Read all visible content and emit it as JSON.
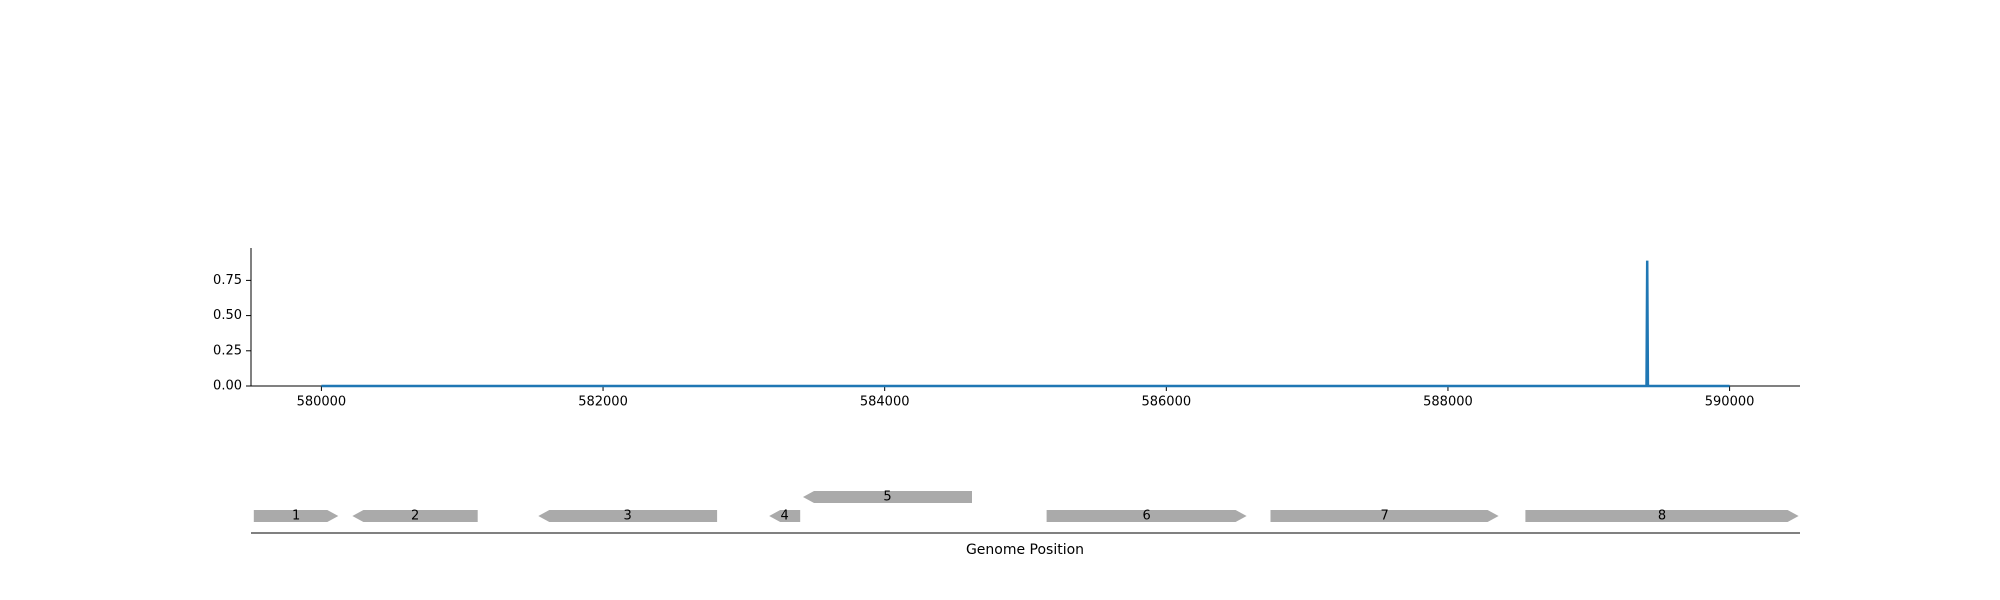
{
  "colors": {
    "series": "#1f77b4",
    "gene": "#aaaaaa",
    "axis": "#000000"
  },
  "chart_data": [
    {
      "type": "line",
      "title": "",
      "xlabel": "",
      "ylabel": "",
      "xlim": [
        579500,
        590500
      ],
      "ylim": [
        0,
        0.98
      ],
      "x_ticks": [
        580000,
        582000,
        584000,
        586000,
        588000,
        590000
      ],
      "x_tick_labels": [
        "580000",
        "582000",
        "584000",
        "586000",
        "588000",
        "590000"
      ],
      "y_ticks": [
        0,
        0.25,
        0.5,
        0.75
      ],
      "y_tick_labels": [
        "0.00",
        "0.25",
        "0.50",
        "0.75"
      ],
      "grid": false,
      "series": [
        {
          "x": [
            580000,
            589410,
            589415,
            589420,
            590000
          ],
          "y": [
            0,
            0,
            0.89,
            0,
            0
          ]
        }
      ]
    },
    {
      "type": "gene-track",
      "xlabel": "Genome Position",
      "xlim": [
        579500,
        590500
      ],
      "genes": [
        {
          "label": "1",
          "start": 579520,
          "end": 580120,
          "strand": "+",
          "row": 0
        },
        {
          "label": "2",
          "start": 580220,
          "end": 581110,
          "strand": "-",
          "row": 0
        },
        {
          "label": "3",
          "start": 581540,
          "end": 582810,
          "strand": "-",
          "row": 0
        },
        {
          "label": "4",
          "start": 583180,
          "end": 583400,
          "strand": "-",
          "row": 0
        },
        {
          "label": "5",
          "start": 583420,
          "end": 584620,
          "strand": "-",
          "row": 1
        },
        {
          "label": "6",
          "start": 585150,
          "end": 586570,
          "strand": "+",
          "row": 0
        },
        {
          "label": "7",
          "start": 586740,
          "end": 588360,
          "strand": "+",
          "row": 0
        },
        {
          "label": "8",
          "start": 588550,
          "end": 590490,
          "strand": "+",
          "row": 0
        }
      ]
    }
  ]
}
